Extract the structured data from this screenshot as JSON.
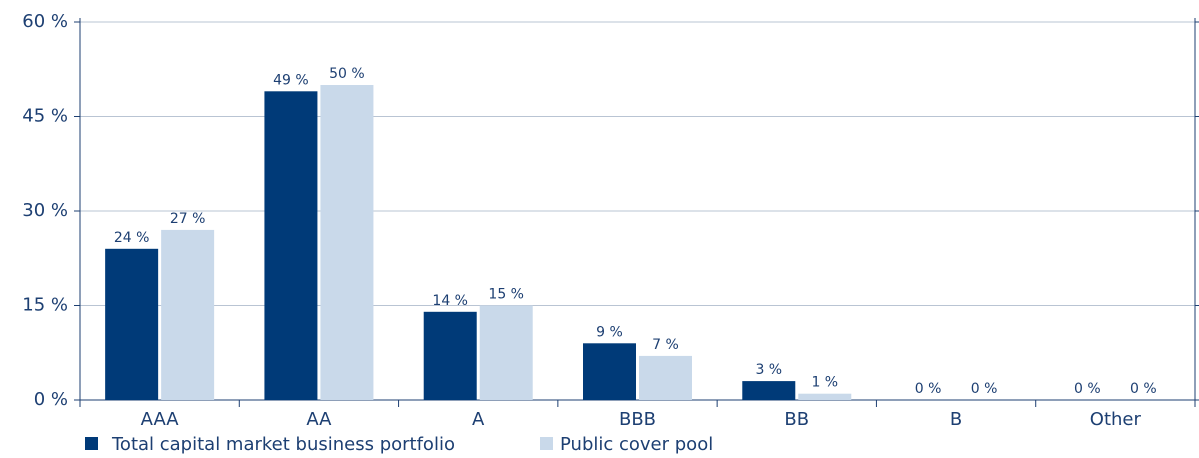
{
  "chart_data": {
    "type": "bar",
    "categories": [
      "AAA",
      "AA",
      "A",
      "BBB",
      "BB",
      "B",
      "Other"
    ],
    "series": [
      {
        "name": "Total capital market business portfolio",
        "color": "#003a78",
        "values": [
          24,
          49,
          14,
          9,
          3,
          0,
          0
        ],
        "value_labels": [
          "24 %",
          "49 %",
          "14 %",
          "9 %",
          "3 %",
          "0 %",
          "0 %"
        ]
      },
      {
        "name": "Public cover pool",
        "color": "#c9d9ea",
        "values": [
          27,
          50,
          15,
          7,
          1,
          0,
          0
        ],
        "value_labels": [
          "27 %",
          "50 %",
          "15 %",
          "7 %",
          "1 %",
          "0 %",
          "0 %"
        ]
      }
    ],
    "ylim": [
      0,
      60
    ],
    "yticks": [
      {
        "value": 0,
        "label": "0 %"
      },
      {
        "value": 15,
        "label": "15 %"
      },
      {
        "value": 30,
        "label": "30 %"
      },
      {
        "value": 45,
        "label": "45 %"
      },
      {
        "value": 60,
        "label": "60 %"
      }
    ],
    "grid": true
  }
}
